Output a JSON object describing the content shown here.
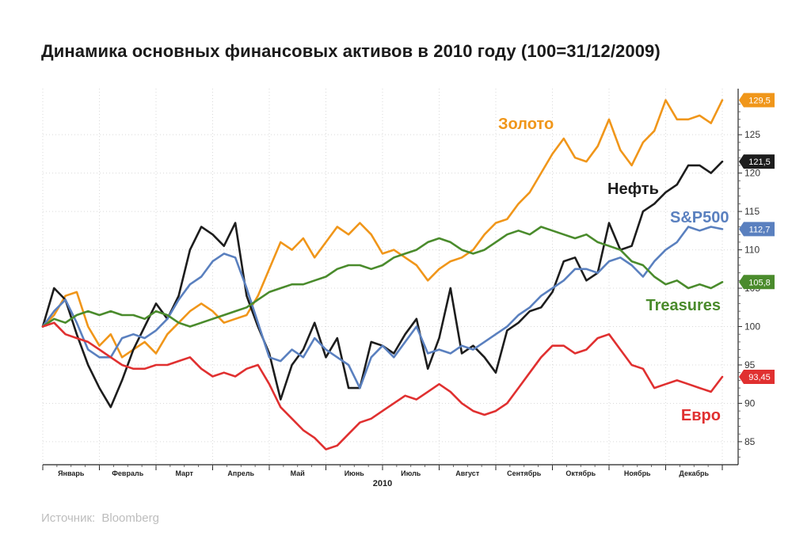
{
  "title": "Динамика основных финансовых активов в 2010 году (100=31/12/2009)",
  "source": {
    "label": "Источник:",
    "value": "Bloomberg"
  },
  "chart_data": {
    "type": "line",
    "xlabel": "2010",
    "ylabel": "",
    "ylim": [
      82,
      131
    ],
    "yticks": [
      85,
      90,
      95,
      100,
      105,
      110,
      115,
      120,
      125
    ],
    "months": [
      "Январь",
      "Февраль",
      "Март",
      "Апрель",
      "Май",
      "Июнь",
      "Июль",
      "Август",
      "Сентябрь",
      "Октябрь",
      "Ноябрь",
      "Декабрь"
    ],
    "grid": true,
    "series": [
      {
        "name": "Золото",
        "color": "#f0961a",
        "end_label": "129,5",
        "x": [
          0,
          0.2,
          0.4,
          0.6,
          0.8,
          1.0,
          1.2,
          1.4,
          1.6,
          1.8,
          2.0,
          2.2,
          2.4,
          2.6,
          2.8,
          3.0,
          3.2,
          3.4,
          3.6,
          3.8,
          4.0,
          4.2,
          4.4,
          4.6,
          4.8,
          5.0,
          5.2,
          5.4,
          5.6,
          5.8,
          6.0,
          6.2,
          6.4,
          6.6,
          6.8,
          7.0,
          7.2,
          7.4,
          7.6,
          7.8,
          8.0,
          8.2,
          8.4,
          8.6,
          8.8,
          9.0,
          9.2,
          9.4,
          9.6,
          9.8,
          10.0,
          10.2,
          10.4,
          10.6,
          10.8,
          11.0,
          11.2,
          11.4,
          11.6,
          11.8,
          12.0
        ],
        "values": [
          100,
          101.5,
          104,
          104.5,
          100,
          97.5,
          99,
          96,
          97,
          98,
          96.5,
          99,
          100.5,
          102,
          103,
          102,
          100.5,
          101,
          101.5,
          104,
          107.5,
          111,
          110,
          111.5,
          109,
          111,
          113,
          112,
          113.5,
          112,
          109.5,
          110,
          109,
          108,
          106,
          107.5,
          108.5,
          109,
          110,
          112,
          113.5,
          114,
          116,
          117.5,
          120,
          122.5,
          124.5,
          122,
          121.5,
          123.5,
          127,
          123,
          121,
          124,
          125.5,
          129.5,
          127,
          127,
          127.5,
          126.5,
          129.5
        ]
      },
      {
        "name": "Нефть",
        "color": "#1d1d1d",
        "end_label": "121,5",
        "x": [
          0,
          0.2,
          0.4,
          0.6,
          0.8,
          1.0,
          1.2,
          1.4,
          1.6,
          1.8,
          2.0,
          2.2,
          2.4,
          2.6,
          2.8,
          3.0,
          3.2,
          3.4,
          3.6,
          3.8,
          4.0,
          4.2,
          4.4,
          4.6,
          4.8,
          5.0,
          5.2,
          5.4,
          5.6,
          5.8,
          6.0,
          6.2,
          6.4,
          6.6,
          6.8,
          7.0,
          7.2,
          7.4,
          7.6,
          7.8,
          8.0,
          8.2,
          8.4,
          8.6,
          8.8,
          9.0,
          9.2,
          9.4,
          9.6,
          9.8,
          10.0,
          10.2,
          10.4,
          10.6,
          10.8,
          11.0,
          11.2,
          11.4,
          11.6,
          11.8,
          12.0
        ],
        "values": [
          100,
          105,
          103.5,
          99,
          95,
          92,
          89.5,
          93,
          97,
          100,
          103,
          101,
          104,
          110,
          113,
          112,
          110.5,
          113.5,
          104,
          100,
          96.5,
          90.5,
          95,
          97,
          100.5,
          96,
          98.5,
          92,
          92,
          98,
          97.5,
          96.5,
          99,
          101,
          94.5,
          98.5,
          105,
          96.5,
          97.5,
          96,
          94,
          99.5,
          100.5,
          102,
          102.5,
          104.5,
          108.5,
          109,
          106,
          107,
          113.5,
          110,
          110.5,
          115,
          116,
          117.5,
          118.5,
          121,
          121,
          120,
          121.5
        ]
      },
      {
        "name": "S&P500",
        "color": "#5a80bf",
        "end_label": "112,7",
        "x": [
          0,
          0.2,
          0.4,
          0.6,
          0.8,
          1.0,
          1.2,
          1.4,
          1.6,
          1.8,
          2.0,
          2.2,
          2.4,
          2.6,
          2.8,
          3.0,
          3.2,
          3.4,
          3.6,
          3.8,
          4.0,
          4.2,
          4.4,
          4.6,
          4.8,
          5.0,
          5.2,
          5.4,
          5.6,
          5.8,
          6.0,
          6.2,
          6.4,
          6.6,
          6.8,
          7.0,
          7.2,
          7.4,
          7.6,
          7.8,
          8.0,
          8.2,
          8.4,
          8.6,
          8.8,
          9.0,
          9.2,
          9.4,
          9.6,
          9.8,
          10.0,
          10.2,
          10.4,
          10.6,
          10.8,
          11.0,
          11.2,
          11.4,
          11.6,
          11.8,
          12.0
        ],
        "values": [
          100,
          102,
          103.5,
          100.5,
          97,
          96,
          96,
          98.5,
          99,
          98.5,
          99.5,
          101,
          103.5,
          105.5,
          106.5,
          108.5,
          109.5,
          109,
          105,
          100.5,
          96,
          95.5,
          97,
          96,
          98.5,
          97,
          96,
          95,
          92,
          96,
          97.5,
          96,
          98,
          100,
          96.5,
          97,
          96.5,
          97.5,
          97,
          98,
          99,
          100,
          101.5,
          102.5,
          104,
          105,
          106,
          107.5,
          107.5,
          107,
          108.5,
          109,
          108,
          106.5,
          108.5,
          110,
          111,
          113,
          112.5,
          113,
          112.7
        ]
      },
      {
        "name": "Treasures",
        "color": "#4a8b2c",
        "end_label": "105,8",
        "x": [
          0,
          0.2,
          0.4,
          0.6,
          0.8,
          1.0,
          1.2,
          1.4,
          1.6,
          1.8,
          2.0,
          2.2,
          2.4,
          2.6,
          2.8,
          3.0,
          3.2,
          3.4,
          3.6,
          3.8,
          4.0,
          4.2,
          4.4,
          4.6,
          4.8,
          5.0,
          5.2,
          5.4,
          5.6,
          5.8,
          6.0,
          6.2,
          6.4,
          6.6,
          6.8,
          7.0,
          7.2,
          7.4,
          7.6,
          7.8,
          8.0,
          8.2,
          8.4,
          8.6,
          8.8,
          9.0,
          9.2,
          9.4,
          9.6,
          9.8,
          10.0,
          10.2,
          10.4,
          10.6,
          10.8,
          11.0,
          11.2,
          11.4,
          11.6,
          11.8,
          12.0
        ],
        "values": [
          100,
          101,
          100.5,
          101.5,
          102,
          101.5,
          102,
          101.5,
          101.5,
          101,
          102,
          101.5,
          100.5,
          100,
          100.5,
          101,
          101.5,
          102,
          102.5,
          103.5,
          104.5,
          105,
          105.5,
          105.5,
          106,
          106.5,
          107.5,
          108,
          108,
          107.5,
          108,
          109,
          109.5,
          110,
          111,
          111.5,
          111,
          110,
          109.5,
          110,
          111,
          112,
          112.5,
          112,
          113,
          112.5,
          112,
          111.5,
          112,
          111,
          110.5,
          110,
          108.5,
          108,
          106.5,
          105.5,
          106,
          105,
          105.5,
          105,
          105.8
        ]
      },
      {
        "name": "Евро",
        "color": "#e03030",
        "end_label": "93,45",
        "x": [
          0,
          0.2,
          0.4,
          0.6,
          0.8,
          1.0,
          1.2,
          1.4,
          1.6,
          1.8,
          2.0,
          2.2,
          2.4,
          2.6,
          2.8,
          3.0,
          3.2,
          3.4,
          3.6,
          3.8,
          4.0,
          4.2,
          4.4,
          4.6,
          4.8,
          5.0,
          5.2,
          5.4,
          5.6,
          5.8,
          6.0,
          6.2,
          6.4,
          6.6,
          6.8,
          7.0,
          7.2,
          7.4,
          7.6,
          7.8,
          8.0,
          8.2,
          8.4,
          8.6,
          8.8,
          9.0,
          9.2,
          9.4,
          9.6,
          9.8,
          10.0,
          10.2,
          10.4,
          10.6,
          10.8,
          11.0,
          11.2,
          11.4,
          11.6,
          11.8,
          12.0
        ],
        "values": [
          100,
          100.5,
          99,
          98.5,
          98,
          97,
          96,
          95,
          94.5,
          94.5,
          95,
          95,
          95.5,
          96,
          94.5,
          93.5,
          94,
          93.5,
          94.5,
          95,
          92.5,
          89.5,
          88,
          86.5,
          85.5,
          84,
          84.5,
          86,
          87.5,
          88,
          89,
          90,
          91,
          90.5,
          91.5,
          92.5,
          91.5,
          90,
          89,
          88.5,
          89,
          90,
          92,
          94,
          96,
          97.5,
          97.5,
          96.5,
          97,
          98.5,
          99,
          97,
          95,
          94.5,
          92,
          92.5,
          93,
          92.5,
          92,
          91.5,
          93.45
        ]
      }
    ],
    "series_labels": [
      {
        "text": "Золото",
        "color": "#f0961a"
      },
      {
        "text": "Нефть",
        "color": "#1d1d1d"
      },
      {
        "text": "S&P500",
        "color": "#5a80bf"
      },
      {
        "text": "Treasures",
        "color": "#4a8b2c"
      },
      {
        "text": "Евро",
        "color": "#e03030"
      }
    ]
  }
}
